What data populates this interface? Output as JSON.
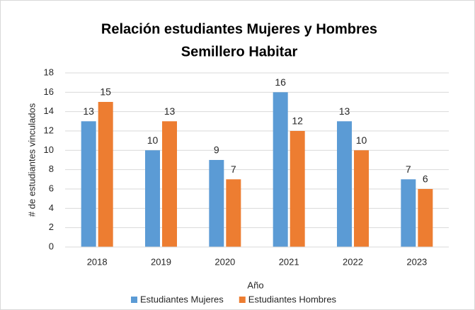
{
  "chart_data": {
    "type": "bar",
    "title": [
      "Relación estudiantes Mujeres y Hombres",
      "Semillero Habitar"
    ],
    "x_label": "Año",
    "y_label": "# de estudiantes vinculados",
    "categories": [
      "2018",
      "2019",
      "2020",
      "2021",
      "2022",
      "2023"
    ],
    "series": [
      {
        "name": "Estudiantes Mujeres",
        "color": "#5b9bd5",
        "values": [
          13,
          10,
          9,
          16,
          13,
          7
        ]
      },
      {
        "name": "Estudiantes Hombres",
        "color": "#ed7d31",
        "values": [
          15,
          13,
          7,
          12,
          10,
          6
        ]
      }
    ],
    "ylim": [
      0,
      18
    ],
    "yticks": [
      0,
      2,
      4,
      6,
      8,
      10,
      12,
      14,
      16,
      18
    ],
    "grid": true,
    "legend": "bottom"
  }
}
